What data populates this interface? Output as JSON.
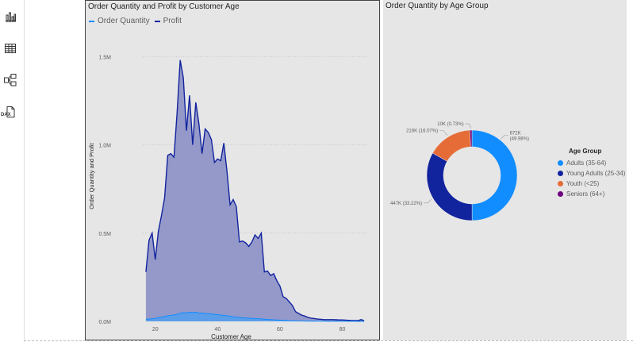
{
  "rail": {
    "icons": [
      "report-view-icon",
      "table-view-icon",
      "model-view-icon",
      "dax-query-icon"
    ],
    "dax_label": "DAX"
  },
  "area_visual": {
    "title": "Order Quantity and Profit by Customer Age",
    "legend": [
      {
        "label": "Order Quantity",
        "color": "#118dff"
      },
      {
        "label": "Profit",
        "color": "#12239e"
      }
    ]
  },
  "donut_visual": {
    "title": "Order Quantity by Age Group",
    "legend_title": "Age Group"
  },
  "colors": {
    "profit_line": "#12239e",
    "profit_fill": "#9499c9",
    "qty_line": "#118dff",
    "qty_fill": "#5b9de8",
    "adults": "#118dff",
    "young_adults": "#12239e",
    "youth": "#e66c37",
    "seniors": "#6b007b"
  },
  "chart_data": [
    {
      "type": "area",
      "title": "Order Quantity and Profit by Customer Age",
      "xlabel": "Customer Age",
      "ylabel": "Order Quantity and Profit",
      "xlim": [
        16,
        88
      ],
      "ylim": [
        0,
        1600000
      ],
      "x_ticks": [
        20,
        40,
        60,
        80
      ],
      "x_tick_labels": [
        "20",
        "40",
        "60",
        "80"
      ],
      "y_ticks": [
        0,
        500000,
        1000000,
        1500000
      ],
      "y_tick_labels": [
        "0.0M",
        "0.5M",
        "1.0M",
        "1.5M"
      ],
      "grid": true,
      "legend_position": "top-left",
      "series": [
        {
          "name": "Profit",
          "x": [
            17,
            18,
            19,
            20,
            21,
            22,
            23,
            24,
            25,
            26,
            27,
            28,
            29,
            30,
            31,
            32,
            33,
            34,
            35,
            36,
            37,
            38,
            39,
            40,
            41,
            42,
            43,
            44,
            45,
            46,
            47,
            48,
            49,
            50,
            51,
            52,
            53,
            54,
            55,
            56,
            57,
            58,
            59,
            60,
            61,
            62,
            63,
            64,
            65,
            66,
            67,
            68,
            69,
            70,
            71,
            72,
            73,
            74,
            75,
            76,
            77,
            78,
            79,
            80,
            81,
            82,
            83,
            84,
            85,
            86,
            87
          ],
          "y": [
            280000,
            460000,
            500000,
            350000,
            510000,
            600000,
            700000,
            940000,
            950000,
            930000,
            1180000,
            1480000,
            1380000,
            1080000,
            1280000,
            1000000,
            1240000,
            1120000,
            950000,
            1090000,
            1070000,
            1030000,
            900000,
            920000,
            910000,
            1010000,
            850000,
            660000,
            690000,
            650000,
            450000,
            455000,
            445000,
            425000,
            450000,
            490000,
            470000,
            500000,
            280000,
            285000,
            260000,
            270000,
            230000,
            200000,
            140000,
            130000,
            110000,
            90000,
            55000,
            45000,
            35000,
            30000,
            22000,
            18000,
            16000,
            13000,
            12000,
            10000,
            10000,
            10000,
            10000,
            9000,
            8000,
            8000,
            7000,
            6000,
            5000,
            5000,
            4000,
            10000,
            4000
          ]
        },
        {
          "name": "Order Quantity",
          "x": [
            17,
            18,
            19,
            20,
            21,
            22,
            23,
            24,
            25,
            26,
            27,
            28,
            29,
            30,
            31,
            32,
            33,
            34,
            35,
            36,
            37,
            38,
            39,
            40,
            41,
            42,
            43,
            44,
            45,
            46,
            47,
            48,
            49,
            50,
            51,
            52,
            53,
            54,
            55,
            56,
            57,
            58,
            59,
            60,
            61,
            62,
            63,
            64,
            65,
            66,
            67,
            68,
            69,
            70,
            71,
            72,
            73,
            74,
            75,
            76,
            77,
            78,
            79,
            80,
            81,
            82,
            83,
            84,
            85,
            86,
            87
          ],
          "y": [
            12000,
            13000,
            15000,
            16000,
            22000,
            24000,
            28000,
            32000,
            34000,
            36000,
            40000,
            46000,
            50000,
            48000,
            52000,
            50000,
            52000,
            48000,
            46000,
            46000,
            43000,
            42000,
            40000,
            38000,
            36000,
            34000,
            32000,
            29000,
            26000,
            24000,
            22000,
            20000,
            19000,
            18000,
            17000,
            16000,
            15000,
            14000,
            12000,
            11000,
            10000,
            9000,
            8000,
            7000,
            6000,
            5000,
            4000,
            3500,
            3000,
            2500,
            2000,
            1800,
            1600,
            1400,
            1200,
            1100,
            1000,
            900,
            800,
            700,
            600,
            500,
            500,
            400,
            400,
            300,
            300,
            300,
            200,
            400,
            200
          ]
        }
      ]
    },
    {
      "type": "pie",
      "title": "Order Quantity by Age Group",
      "legend_title": "Age Group",
      "legend_position": "right",
      "categories": [
        "Adults (35-64)",
        "Young Adults (25-34)",
        "Youth (<25)",
        "Seniors (64+)"
      ],
      "values": [
        672000,
        447000,
        216000,
        10000
      ],
      "percents": [
        49.98,
        33.22,
        16.07,
        0.73
      ],
      "data_labels": [
        {
          "value": "672K",
          "pct": "(49.98%)"
        },
        {
          "value": "447K (33.22%)"
        },
        {
          "value": "216K (16.07%)"
        },
        {
          "value": "10K (0.73%)"
        }
      ]
    }
  ]
}
